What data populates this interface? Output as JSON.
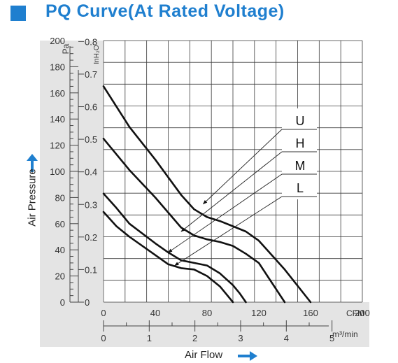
{
  "title": "PQ Curve(At Rated Voltage)",
  "icons": {
    "title_marker": "square-icon",
    "y_arrow": "arrow-up-icon",
    "x_arrow": "arrow-right-icon"
  },
  "colors": {
    "accent": "#1f7fcf",
    "plot_bg": "#e4e4e4",
    "curve": "#111111"
  },
  "axis_labels": {
    "y": "Air Pressure",
    "x": "Air Flow"
  },
  "chart_data": {
    "type": "line",
    "xlabel": "Air Flow",
    "ylabel": "Air Pressure",
    "x_unit_primary": "CFM",
    "x_unit_secondary": "m³/min",
    "y_unit_primary": "Pa",
    "y_unit_secondary": "InH₂O",
    "xlim_cfm": [
      0,
      200
    ],
    "ylim_pa": [
      0,
      200
    ],
    "x_ticks_cfm": [
      0,
      40,
      80,
      120,
      160,
      200
    ],
    "x_ticks_m3min": [
      0,
      1,
      2,
      3,
      4,
      5
    ],
    "y_ticks_pa": [
      0,
      20,
      40,
      60,
      80,
      100,
      120,
      140,
      160,
      180,
      200
    ],
    "y_ticks_inh2o": [
      "0",
      "0.1",
      "0.2",
      "0.3",
      "0.4",
      "0.5",
      "0.6",
      "0.7",
      "0.8"
    ],
    "grid": true,
    "series": [
      {
        "name": "U",
        "x": [
          0,
          20,
          40,
          60,
          70,
          80,
          90,
          100,
          110,
          120,
          140,
          160
        ],
        "y": [
          165,
          134,
          109,
          82,
          71,
          65,
          62,
          58,
          54,
          47,
          25,
          0
        ]
      },
      {
        "name": "H",
        "x": [
          0,
          20,
          40,
          60,
          70,
          80,
          90,
          100,
          110,
          120,
          140
        ],
        "y": [
          125,
          101,
          80,
          57,
          51,
          48,
          46,
          43,
          37,
          30,
          0
        ]
      },
      {
        "name": "M",
        "x": [
          0,
          10,
          20,
          40,
          50,
          60,
          70,
          80,
          90,
          100,
          105,
          110
        ],
        "y": [
          83,
          72,
          60,
          45,
          38,
          32,
          30,
          28,
          22,
          13,
          7,
          0
        ]
      },
      {
        "name": "L",
        "x": [
          0,
          10,
          20,
          40,
          50,
          60,
          70,
          80,
          90,
          95,
          100
        ],
        "y": [
          69,
          58,
          50,
          36,
          29,
          26,
          25,
          20,
          12,
          6,
          0
        ]
      }
    ]
  }
}
